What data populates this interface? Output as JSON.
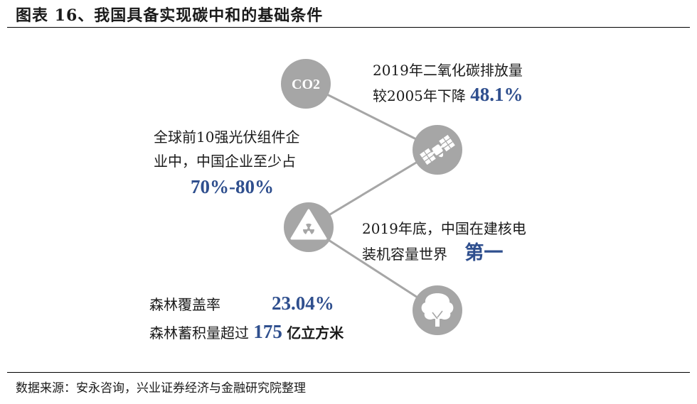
{
  "header": {
    "title": "图表 16、我国具备实现碳中和的基础条件"
  },
  "icons": {
    "co2": {
      "name": "co2-icon",
      "label": "CO2"
    },
    "satellite": {
      "name": "satellite-solar-icon"
    },
    "nuclear": {
      "name": "radiation-warning-icon"
    },
    "tree": {
      "name": "tree-icon"
    }
  },
  "items": {
    "carbon": {
      "line1": "2019年二氧化碳排放量",
      "line2_prefix": "较2005年下降",
      "highlight": "48.1%"
    },
    "solar": {
      "line1": "全球前10强光伏组件企",
      "line2": "业中，中国企业至少占",
      "highlight": "70%-80%"
    },
    "nuclear": {
      "line1": "2019年底，中国在建核电",
      "line2_prefix": "装机容量世界",
      "highlight": "第一"
    },
    "forest": {
      "row1_label": "森林覆盖率",
      "row1_value": "23.04%",
      "row2_label": "森林蓄积量超过",
      "row2_value": "175",
      "row2_unit": "亿立方米"
    }
  },
  "colors": {
    "circle": "#a6a6a6",
    "line": "#a6a6a6",
    "highlight": "#2f4f8e"
  },
  "footer": {
    "source": "数据来源：安永咨询，兴业证券经济与金融研究院整理"
  }
}
